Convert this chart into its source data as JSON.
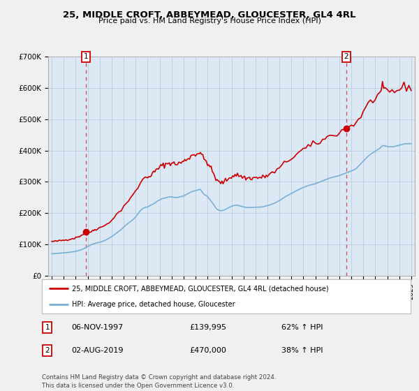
{
  "title": "25, MIDDLE CROFT, ABBEYMEAD, GLOUCESTER, GL4 4RL",
  "subtitle": "Price paid vs. HM Land Registry's House Price Index (HPI)",
  "legend_line1": "25, MIDDLE CROFT, ABBEYMEAD, GLOUCESTER, GL4 4RL (detached house)",
  "legend_line2": "HPI: Average price, detached house, Gloucester",
  "annotation1_date": "06-NOV-1997",
  "annotation1_price": "£139,995",
  "annotation1_hpi": "62% ↑ HPI",
  "annotation2_date": "02-AUG-2019",
  "annotation2_price": "£470,000",
  "annotation2_hpi": "38% ↑ HPI",
  "footnote": "Contains HM Land Registry data © Crown copyright and database right 2024.\nThis data is licensed under the Open Government Licence v3.0.",
  "price_color": "#cc0000",
  "hpi_color": "#7ab0d4",
  "vline_color": "#cc0000",
  "ylim": [
    0,
    700000
  ],
  "yticks": [
    0,
    100000,
    200000,
    300000,
    400000,
    500000,
    600000,
    700000
  ],
  "ytick_labels": [
    "£0",
    "£100K",
    "£200K",
    "£300K",
    "£400K",
    "£500K",
    "£600K",
    "£700K"
  ],
  "xlim_start": 1994.7,
  "xlim_end": 2025.3,
  "plot_bg_color": "#dce9f5",
  "fig_bg_color": "#f0f0f0",
  "sale1_x": 1997.85,
  "sale1_y": 139995,
  "sale2_x": 2019.58,
  "sale2_y": 470000
}
